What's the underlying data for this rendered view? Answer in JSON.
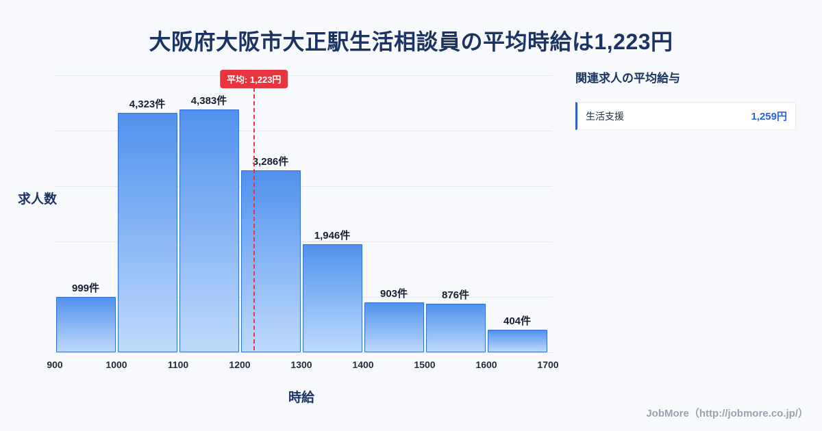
{
  "page": {
    "title": "大阪府大阪市大正駅生活相談員の平均時給は1,223円",
    "footer": "JobMore（http://jobmore.co.jp/）"
  },
  "chart_data": {
    "type": "bar",
    "title": "大阪府大阪市大正駅生活相談員の平均時給は1,223円",
    "xlabel": "時給",
    "ylabel": "求人数",
    "bin_edges": [
      900,
      1000,
      1100,
      1200,
      1300,
      1400,
      1500,
      1600,
      1700
    ],
    "x_tick_labels": [
      "900",
      "1000",
      "1100",
      "1200",
      "1300",
      "1400",
      "1500",
      "1600",
      "1700"
    ],
    "values": [
      999,
      4323,
      4383,
      3286,
      1946,
      903,
      876,
      404
    ],
    "bar_labels": [
      "999件",
      "4,323件",
      "4,383件",
      "3,286件",
      "1,946件",
      "903件",
      "876件",
      "404件"
    ],
    "ylim": [
      0,
      5000
    ],
    "grid": true,
    "legend": "none",
    "average": {
      "value": 1223,
      "label": "平均: 1,223円"
    },
    "colors": {
      "bar_top": "#5191ee",
      "bar_bottom": "#bedafb",
      "bar_border": "#2f6fd6",
      "average_line": "#e8343f",
      "grid": "#e4e9f0",
      "title": "#1b3262",
      "value_accent": "#2563eb"
    }
  },
  "side_panel": {
    "heading": "関連求人の平均給与",
    "rows": [
      {
        "label": "生活支援",
        "value": "1,259円"
      }
    ]
  }
}
